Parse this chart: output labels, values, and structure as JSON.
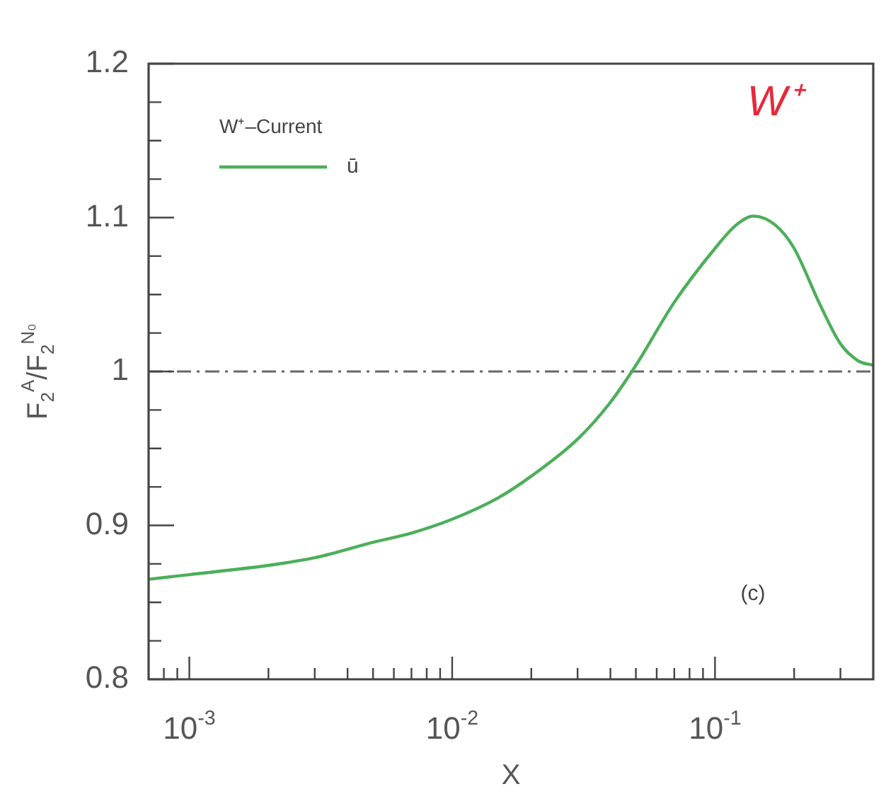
{
  "chart_data": {
    "type": "line",
    "xlabel": "X",
    "ylabel": "F$_{2}$$^{A}$/F$_{2}$$^{N₀}$",
    "legend_title": "W⁺–Current",
    "legend": "top left",
    "log": "x",
    "grid": false,
    "marker": "none",
    "line_style": "solid",
    "xlim": [
      0.0007,
      0.4
    ],
    "xticks": [
      {
        "value": 0.0008,
        "label": null
      },
      {
        "value": 0.0009,
        "label": null
      },
      {
        "value": 0.001,
        "label": "10$^{-3}$"
      },
      {
        "value": 0.002,
        "label": null
      },
      {
        "value": 0.003,
        "label": null
      },
      {
        "value": 0.004,
        "label": null
      },
      {
        "value": 0.005,
        "label": null
      },
      {
        "value": 0.006,
        "label": null
      },
      {
        "value": 0.007,
        "label": null
      },
      {
        "value": 0.008,
        "label": null
      },
      {
        "value": 0.009,
        "label": null
      },
      {
        "value": 0.01,
        "label": "10$^{-2}$"
      },
      {
        "value": 0.02,
        "label": null
      },
      {
        "value": 0.03,
        "label": null
      },
      {
        "value": 0.04,
        "label": null
      },
      {
        "value": 0.05,
        "label": null
      },
      {
        "value": 0.06,
        "label": null
      },
      {
        "value": 0.07,
        "label": null
      },
      {
        "value": 0.08,
        "label": null
      },
      {
        "value": 0.09,
        "label": null
      },
      {
        "value": 0.1,
        "label": "10$^{-1}$"
      },
      {
        "value": 0.2,
        "label": null
      },
      {
        "value": 0.3,
        "label": null
      }
    ],
    "ylim": [
      0.8,
      1.2
    ],
    "yticks": [
      0.8,
      {
        "value": 0.825,
        "label": null
      },
      {
        "value": 0.85,
        "label": null
      },
      {
        "value": 0.875,
        "label": null
      },
      0.9,
      {
        "value": 0.925,
        "label": null
      },
      {
        "value": 0.95,
        "label": null
      },
      {
        "value": 0.975,
        "label": null
      },
      1,
      {
        "value": 1.025,
        "label": null
      },
      {
        "value": 1.05,
        "label": null
      },
      {
        "value": 1.075,
        "label": null
      },
      1.1,
      {
        "value": 1.125,
        "label": null
      },
      {
        "value": 1.15,
        "label": null
      },
      {
        "value": 1.175,
        "label": null
      },
      1.2
    ],
    "ref_lines": [
      {
        "axis": "y",
        "value": 1,
        "color": "#666666",
        "line_style": "dashed"
      }
    ],
    "annotations": [
      "W⁺",
      "(c)"
    ],
    "series": [
      {
        "name": "ū",
        "color": "#4caf5a",
        "x": [
          0.0007,
          0.001,
          0.002,
          0.003,
          0.005,
          0.007,
          0.01,
          0.015,
          0.02,
          0.03,
          0.04,
          0.05,
          0.07,
          0.1,
          0.12,
          0.14,
          0.17,
          0.2,
          0.25,
          0.3,
          0.35,
          0.4
        ],
        "values": [
          0.865,
          0.868,
          0.874,
          0.879,
          0.889,
          0.895,
          0.904,
          0.918,
          0.932,
          0.956,
          0.98,
          1.004,
          1.045,
          1.08,
          1.095,
          1.101,
          1.095,
          1.08,
          1.044,
          1.018,
          1.007,
          1.004
        ]
      }
    ]
  }
}
